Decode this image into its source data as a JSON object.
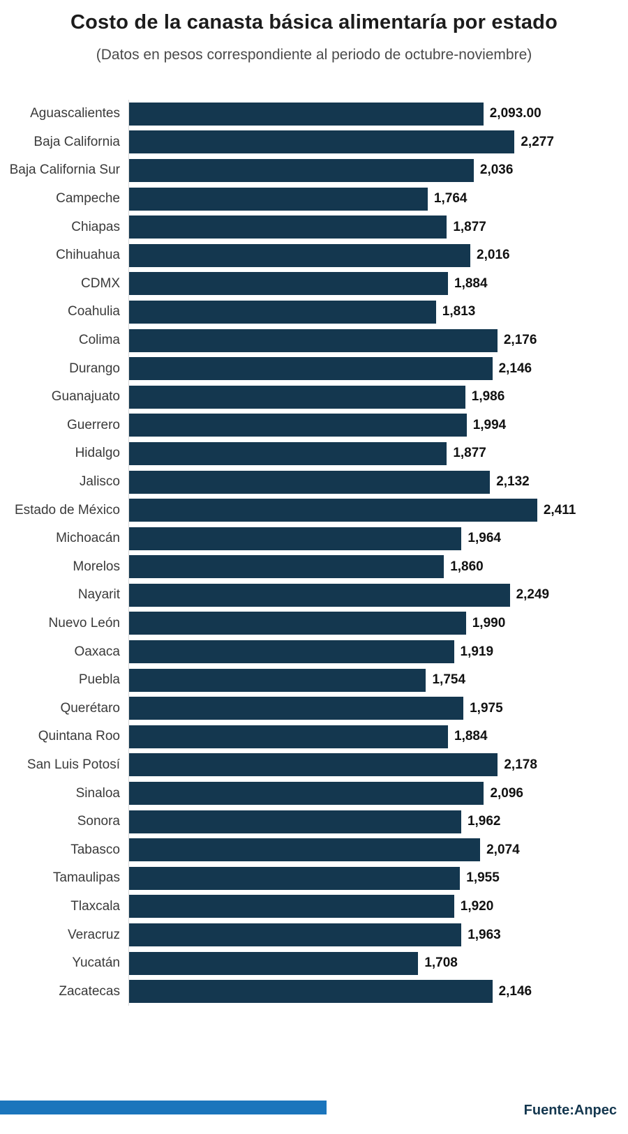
{
  "title": "Costo de la canasta básica alimentaría por estado",
  "subtitle": "(Datos en pesos correspondiente al periodo de octubre-noviembre)",
  "source": "Fuente:Anpec",
  "colors": {
    "bar": "#14374f",
    "accent": "#1b75bc",
    "value_text": "#111111",
    "label_text": "#3a3a3a"
  },
  "chart_data": {
    "type": "bar",
    "orientation": "horizontal",
    "title": "Costo de la canasta básica alimentaría por estado",
    "subtitle": "(Datos en pesos correspondiente al periodo de octubre-noviembre)",
    "xlabel": "",
    "ylabel": "",
    "xlim": [
      0,
      2500
    ],
    "grid": false,
    "legend": false,
    "categories": [
      "Aguascalientes",
      "Baja California",
      "Baja California Sur",
      "Campeche",
      "Chiapas",
      "Chihuahua",
      "CDMX",
      "Coahulia",
      "Colima",
      "Durango",
      "Guanajuato",
      "Guerrero",
      "Hidalgo",
      "Jalisco",
      "Estado de México",
      "Michoacán",
      "Morelos",
      "Nayarit",
      "Nuevo León",
      "Oaxaca",
      "Puebla",
      "Querétaro",
      "Quintana Roo",
      "San Luis Potosí",
      "Sinaloa",
      "Sonora",
      "Tabasco",
      "Tamaulipas",
      "Tlaxcala",
      "Veracruz",
      "Yucatán",
      "Zacatecas"
    ],
    "values": [
      2093,
      2277,
      2036,
      1764,
      1877,
      2016,
      1884,
      1813,
      2176,
      2146,
      1986,
      1994,
      1877,
      2132,
      2411,
      1964,
      1860,
      2249,
      1990,
      1919,
      1754,
      1975,
      1884,
      2178,
      2096,
      1962,
      2074,
      1955,
      1920,
      1963,
      1708,
      2146
    ],
    "value_labels": [
      "2,093.00",
      "2,277",
      "2,036",
      "1,764",
      "1,877",
      "2,016",
      "1,884",
      "1,813",
      "2,176",
      "2,146",
      "1,986",
      "1,994",
      "1,877",
      "2,132",
      "2,411",
      "1,964",
      "1,860",
      "2,249",
      "1,990",
      "1,919",
      "1,754",
      "1,975",
      "1,884",
      "2,178",
      "2,096",
      "1,962",
      "2,074",
      "1,955",
      "1,920",
      "1,963",
      "1,708",
      "2,146"
    ],
    "max_value": 2411
  }
}
